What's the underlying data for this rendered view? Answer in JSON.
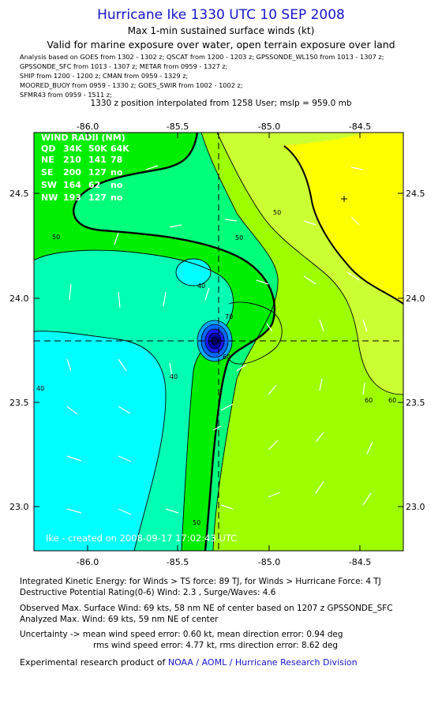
{
  "header": {
    "title": "Hurricane Ike 1330 UTC 10 SEP 2008",
    "subtitle": "Max 1-min sustained surface winds (kt)",
    "valid_line": "Valid for marine exposure over water, open terrain exposure over land"
  },
  "analysis_lines": [
    "Analysis based on  GOES from 1302 - 1302 z;  QSCAT from 1200 - 1203 z;  GPSSONDE_WL150 from 1013 - 1307 z;",
    "GPSSONDE_SFC from 1013 - 1307 z;  METAR from 0959 - 1327 z;",
    "SHIP from 1200 - 1200 z;  CMAN from 0959 - 1329 z;",
    "MOORED_BUOY from 0959 - 1330 z;  GOES_SWIR from 1002 - 1002 z;",
    "SFMR43 from 0959 - 1511 z;"
  ],
  "position_line": "1330 z position interpolated from 1258 User; mslp = 959.0 mb",
  "map": {
    "lon_ticks": [
      "-86.0",
      "-85.5",
      "-85.0",
      "-84.5"
    ],
    "lat_ticks": [
      "24.5",
      "24.0",
      "23.5",
      "23.0"
    ],
    "contour_labels": [
      "50",
      "60",
      "50",
      "40",
      "50",
      "40",
      "40",
      "60",
      "60",
      "50",
      "70"
    ],
    "credit": "Ike - created on 2008-09-17 17:02:43 UTC",
    "wind_radii": {
      "title": "WIND RADII (NM)",
      "header": [
        "QD",
        "34K",
        "50K",
        "64K"
      ],
      "rows": [
        [
          "NE",
          "210",
          "141",
          "78"
        ],
        [
          "SE",
          "200",
          "127",
          "no"
        ],
        [
          "SW",
          "164",
          "62",
          "no"
        ],
        [
          "NW",
          "193",
          "127",
          "no"
        ]
      ]
    },
    "colors": {
      "cyan": "#00ffff",
      "aqua": "#00ffb3",
      "mint": "#00ff7a",
      "green": "#00ee00",
      "lime": "#9dff00",
      "yellow_green": "#ccff33",
      "yellow": "#ffff00"
    }
  },
  "footer": {
    "ike_line": "Integrated Kinetic Energy:  for Winds > TS force: 89 TJ,  for Winds > Hurricane Force: 4 TJ",
    "dpr_line": "Destructive Potential Rating(0-6)   Wind: 2.3 , Surge/Waves: 4.6",
    "obs_line": "Observed Max. Surface Wind: 69 kts, 58 nm NE of center based on 1207 z GPSSONDE_SFC",
    "analyzed_line": "Analyzed Max. Wind: 69 kts, 59 nm NE of center",
    "uncert_line1": "Uncertainty -> mean wind speed error: 0.60 kt,   mean direction error: 0.94 deg",
    "uncert_line2": "rms wind speed error: 4.77 kt,   rms direction error: 8.62 deg",
    "credit_prefix": "Experimental research product of ",
    "credit_org": "NOAA / AOML / Hurricane Research Division"
  }
}
